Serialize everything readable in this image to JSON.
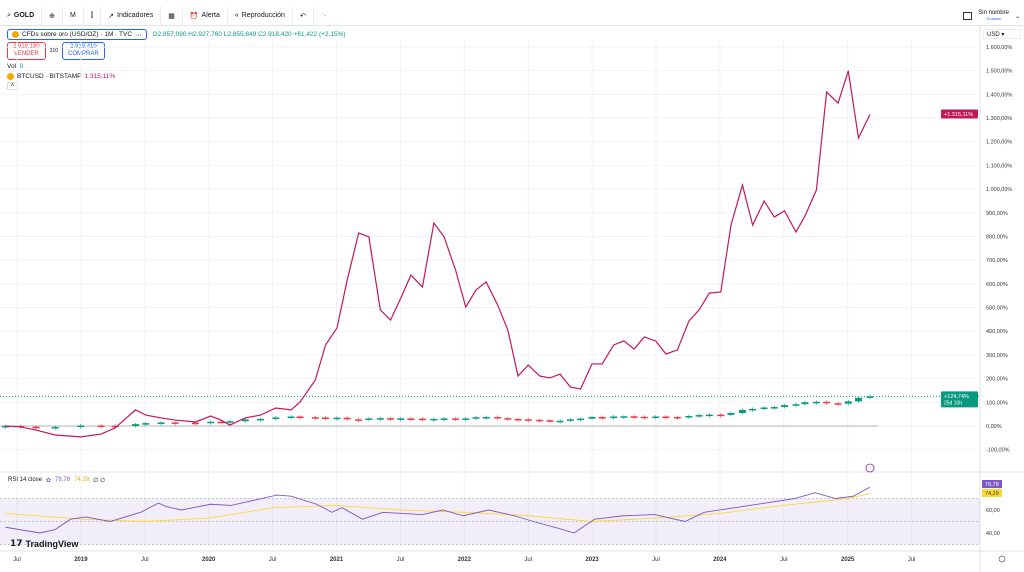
{
  "toolbar": {
    "symbol": "GOLD",
    "interval": "M",
    "indicators": "Indicadores",
    "alert": "Alerta",
    "replay": "Reproducción",
    "layout_name": "Sin nombre",
    "layout_sub": "Guardar"
  },
  "legend": {
    "title": "CFDs sobre oro (USD/OZ) · 1M · TVC",
    "ohlc": "O2.857,090 H2.927,760 L2.855,849 C2.918,420 +61,422 (+2,15%)",
    "sell_price": "2.918,180",
    "sell_label": "VENDER",
    "spread": "310",
    "buy_price": "2.918,410",
    "buy_label": "COMPRAR",
    "vol_label": "Vol.",
    "vol_value": "0",
    "compare": "BTCUSD · BITSTAMP",
    "compare_value": "1.315,11%"
  },
  "currency": "USD",
  "rsi": {
    "label": "RSI 14 close",
    "value": "79,78",
    "ma_value": "74,29",
    "extra": "∅ ∅"
  },
  "brand": "TradingView",
  "colors": {
    "btc": "#c2185b",
    "up": "#089981",
    "down": "#f23645",
    "rsi": "#7e57c2",
    "rsi_ma": "#fdd835"
  },
  "chart_data": [
    {
      "type": "line",
      "ylabel": "",
      "y_ticks": [
        "1.600,00%",
        "1.500,00%",
        "1.400,00%",
        "1.300,00%",
        "1.200,00%",
        "1.100,00%",
        "1.000,00%",
        "900,00%",
        "800,00%",
        "700,00%",
        "600,00%",
        "500,00%",
        "400,00%",
        "300,00%",
        "200,00%",
        "100,00%",
        "0,00%",
        "-100,00%"
      ],
      "ylim": [
        -150,
        1650
      ],
      "x_ticks": [
        "Jul",
        "2019",
        "Jul",
        "2020",
        "Jul",
        "2021",
        "Jul",
        "2022",
        "Jul",
        "2023",
        "Jul",
        "2024",
        "Jul",
        "2025",
        "Jul"
      ],
      "last_labels": {
        "btc": "+1.315,11%",
        "gold": "+124,74%",
        "gold_timer": "25d 10h"
      },
      "series": [
        {
          "name": "BTCUSD",
          "points": [
            [
              2018.4,
              0
            ],
            [
              2018.52,
              -4
            ],
            [
              2018.64,
              -17
            ],
            [
              2018.79,
              -38
            ],
            [
              2018.99,
              -46
            ],
            [
              2019.15,
              -34
            ],
            [
              2019.26,
              -8
            ],
            [
              2019.42,
              68
            ],
            [
              2019.5,
              46
            ],
            [
              2019.62,
              34
            ],
            [
              2019.73,
              25
            ],
            [
              2019.89,
              17
            ],
            [
              2020.01,
              42
            ],
            [
              2020.09,
              25
            ],
            [
              2020.16,
              4
            ],
            [
              2020.28,
              34
            ],
            [
              2020.4,
              46
            ],
            [
              2020.52,
              76
            ],
            [
              2020.64,
              68
            ],
            [
              2020.71,
              101
            ],
            [
              2020.83,
              194
            ],
            [
              2020.91,
              342
            ],
            [
              2021.0,
              414
            ],
            [
              2021.08,
              616
            ],
            [
              2021.17,
              815
            ],
            [
              2021.25,
              798
            ],
            [
              2021.34,
              490
            ],
            [
              2021.42,
              447
            ],
            [
              2021.5,
              540
            ],
            [
              2021.58,
              637
            ],
            [
              2021.67,
              587
            ],
            [
              2021.76,
              857
            ],
            [
              2021.84,
              798
            ],
            [
              2021.93,
              658
            ],
            [
              2022.01,
              502
            ],
            [
              2022.09,
              574
            ],
            [
              2022.17,
              608
            ],
            [
              2022.26,
              511
            ],
            [
              2022.34,
              405
            ],
            [
              2022.42,
              211
            ],
            [
              2022.5,
              257
            ],
            [
              2022.59,
              211
            ],
            [
              2022.67,
              203
            ],
            [
              2022.75,
              219
            ],
            [
              2022.83,
              165
            ],
            [
              2022.91,
              156
            ],
            [
              2023.0,
              262
            ],
            [
              2023.08,
              262
            ],
            [
              2023.17,
              342
            ],
            [
              2023.25,
              359
            ],
            [
              2023.33,
              325
            ],
            [
              2023.41,
              376
            ],
            [
              2023.5,
              359
            ],
            [
              2023.58,
              304
            ],
            [
              2023.67,
              321
            ],
            [
              2023.76,
              443
            ],
            [
              2023.84,
              490
            ],
            [
              2023.92,
              561
            ],
            [
              2024.01,
              566
            ],
            [
              2024.09,
              848
            ],
            [
              2024.18,
              1017
            ],
            [
              2024.26,
              848
            ],
            [
              2024.35,
              950
            ],
            [
              2024.43,
              882
            ],
            [
              2024.51,
              908
            ],
            [
              2024.6,
              819
            ],
            [
              2024.67,
              886
            ],
            [
              2024.76,
              996
            ],
            [
              2024.84,
              1410
            ],
            [
              2024.93,
              1363
            ],
            [
              2025.01,
              1499
            ],
            [
              2025.09,
              1216
            ],
            [
              2025.18,
              1315
            ]
          ]
        },
        {
          "name": "GOLD",
          "style": "candles",
          "points": [
            [
              2018.4,
              0
            ],
            [
              2018.52,
              -3
            ],
            [
              2018.64,
              -5
            ],
            [
              2018.79,
              -4
            ],
            [
              2018.99,
              2
            ],
            [
              2019.15,
              1
            ],
            [
              2019.26,
              0
            ],
            [
              2019.42,
              8
            ],
            [
              2019.5,
              12
            ],
            [
              2019.62,
              15
            ],
            [
              2019.73,
              14
            ],
            [
              2019.89,
              13
            ],
            [
              2020.01,
              18
            ],
            [
              2020.09,
              17
            ],
            [
              2020.16,
              20
            ],
            [
              2020.28,
              28
            ],
            [
              2020.4,
              30
            ],
            [
              2020.52,
              36
            ],
            [
              2020.64,
              40
            ],
            [
              2020.71,
              37
            ],
            [
              2020.83,
              36
            ],
            [
              2020.91,
              34
            ],
            [
              2021.0,
              35
            ],
            [
              2021.08,
              28
            ],
            [
              2021.17,
              26
            ],
            [
              2021.25,
              32
            ],
            [
              2021.34,
              33
            ],
            [
              2021.42,
              30
            ],
            [
              2021.5,
              32
            ],
            [
              2021.58,
              31
            ],
            [
              2021.67,
              28
            ],
            [
              2021.76,
              30
            ],
            [
              2021.84,
              32
            ],
            [
              2021.93,
              31
            ],
            [
              2022.01,
              32
            ],
            [
              2022.09,
              37
            ],
            [
              2022.17,
              38
            ],
            [
              2022.26,
              33
            ],
            [
              2022.34,
              30
            ],
            [
              2022.42,
              28
            ],
            [
              2022.5,
              26
            ],
            [
              2022.59,
              24
            ],
            [
              2022.67,
              21
            ],
            [
              2022.75,
              22
            ],
            [
              2022.83,
              28
            ],
            [
              2022.91,
              31
            ],
            [
              2023.0,
              38
            ],
            [
              2023.08,
              33
            ],
            [
              2023.17,
              40
            ],
            [
              2023.25,
              41
            ],
            [
              2023.33,
              39
            ],
            [
              2023.41,
              38
            ],
            [
              2023.5,
              40
            ],
            [
              2023.58,
              38
            ],
            [
              2023.67,
              37
            ],
            [
              2023.76,
              42
            ],
            [
              2023.84,
              46
            ],
            [
              2023.92,
              48
            ],
            [
              2024.01,
              47
            ],
            [
              2024.09,
              55
            ],
            [
              2024.18,
              68
            ],
            [
              2024.26,
              72
            ],
            [
              2024.35,
              78
            ],
            [
              2024.43,
              80
            ],
            [
              2024.51,
              88
            ],
            [
              2024.6,
              92
            ],
            [
              2024.67,
              100
            ],
            [
              2024.76,
              102
            ],
            [
              2024.84,
              96
            ],
            [
              2024.93,
              94
            ],
            [
              2025.01,
              104
            ],
            [
              2025.09,
              119
            ],
            [
              2025.18,
              125
            ]
          ]
        }
      ]
    },
    {
      "type": "line",
      "title": "RSI 14 close",
      "y_ticks": [
        "60,00",
        "40,00"
      ],
      "ylim": [
        25,
        95
      ],
      "bands": [
        70,
        50,
        30
      ],
      "series": [
        {
          "name": "RSI",
          "points": [
            [
              2018.4,
              45
            ],
            [
              2018.67,
              40
            ],
            [
              2018.79,
              43
            ],
            [
              2018.91,
              52
            ],
            [
              2019.03,
              54
            ],
            [
              2019.22,
              50
            ],
            [
              2019.46,
              58
            ],
            [
              2019.6,
              66
            ],
            [
              2019.66,
              63
            ],
            [
              2019.78,
              60
            ],
            [
              2020.01,
              65
            ],
            [
              2020.17,
              64
            ],
            [
              2020.33,
              68
            ],
            [
              2020.53,
              73
            ],
            [
              2020.64,
              72
            ],
            [
              2020.84,
              65
            ],
            [
              2020.96,
              58
            ],
            [
              2021.04,
              62
            ],
            [
              2021.2,
              52
            ],
            [
              2021.36,
              58
            ],
            [
              2021.67,
              56
            ],
            [
              2021.83,
              60
            ],
            [
              2021.99,
              55
            ],
            [
              2022.19,
              60
            ],
            [
              2022.39,
              55
            ],
            [
              2022.54,
              50
            ],
            [
              2022.74,
              44
            ],
            [
              2022.86,
              40
            ],
            [
              2023.02,
              52
            ],
            [
              2023.25,
              55
            ],
            [
              2023.49,
              56
            ],
            [
              2023.73,
              50
            ],
            [
              2023.88,
              58
            ],
            [
              2024.12,
              62
            ],
            [
              2024.36,
              66
            ],
            [
              2024.59,
              70
            ],
            [
              2024.75,
              75
            ],
            [
              2024.91,
              70
            ],
            [
              2025.05,
              72
            ],
            [
              2025.18,
              79.78
            ]
          ]
        },
        {
          "name": "RSI MA",
          "points": [
            [
              2018.4,
              57
            ],
            [
              2019.0,
              52
            ],
            [
              2019.5,
              50
            ],
            [
              2020.0,
              53
            ],
            [
              2020.5,
              62
            ],
            [
              2021.0,
              64
            ],
            [
              2021.5,
              60
            ],
            [
              2022.0,
              58
            ],
            [
              2022.5,
              55
            ],
            [
              2023.0,
              50
            ],
            [
              2023.5,
              53
            ],
            [
              2024.0,
              57
            ],
            [
              2024.5,
              64
            ],
            [
              2025.0,
              70
            ],
            [
              2025.18,
              74.29
            ]
          ]
        }
      ]
    }
  ]
}
